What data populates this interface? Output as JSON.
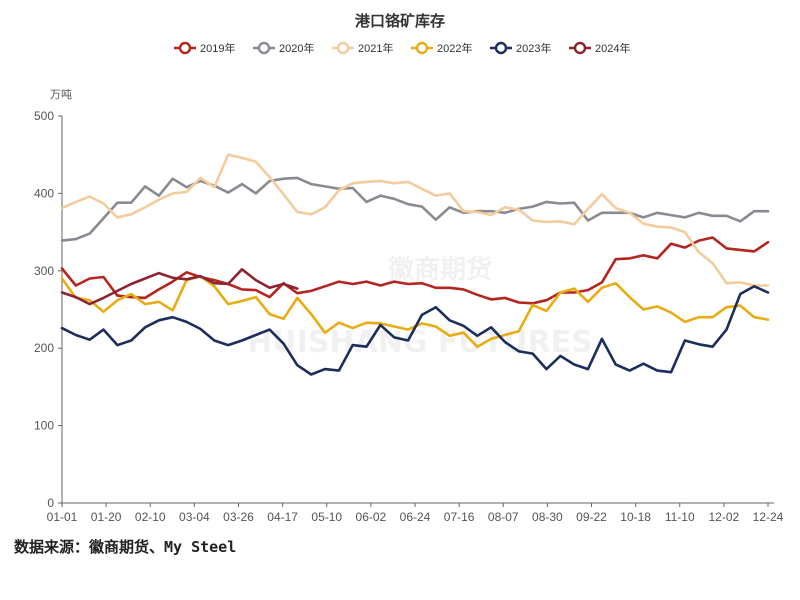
{
  "chart_data": {
    "type": "line",
    "title": "港口铬矿库存",
    "ylabel": "万吨",
    "ylim": [
      0,
      500
    ],
    "yticks": [
      0,
      100,
      200,
      300,
      400,
      500
    ],
    "x_tick_labels": [
      "01-01",
      "01-20",
      "02-10",
      "03-04",
      "03-26",
      "04-17",
      "05-10",
      "06-02",
      "06-24",
      "07-16",
      "08-07",
      "08-30",
      "09-22",
      "10-18",
      "11-10",
      "12-02",
      "12-24"
    ],
    "grid": false,
    "legend_position": "top-center",
    "watermark": [
      "徽商期货",
      "HUISHANG FUTURES"
    ],
    "series": [
      {
        "name": "2019年",
        "color": "#b5251f",
        "values": [
          303,
          281,
          290,
          292,
          268,
          266,
          265,
          276,
          286,
          298,
          292,
          288,
          283,
          276,
          275,
          266,
          284,
          271,
          274,
          280,
          286,
          283,
          286,
          281,
          286,
          283,
          284,
          278,
          278,
          276,
          269,
          263,
          265,
          259,
          258,
          262,
          272,
          272,
          275,
          285,
          315,
          316,
          320,
          316,
          335,
          330,
          339,
          343,
          329,
          327,
          325,
          337
        ]
      },
      {
        "name": "2020年",
        "color": "#8a8a92",
        "values": [
          339,
          341,
          348,
          368,
          388,
          388,
          409,
          397,
          419,
          408,
          416,
          410,
          401,
          412,
          400,
          416,
          419,
          420,
          412,
          409,
          406,
          407,
          389,
          397,
          393,
          386,
          383,
          366,
          382,
          375,
          377,
          377,
          375,
          380,
          383,
          389,
          387,
          388,
          365,
          375,
          375,
          375,
          369,
          375,
          372,
          369,
          375,
          371,
          371,
          364,
          377,
          377
        ]
      },
      {
        "name": "2021年",
        "color": "#f4cc9c",
        "values": [
          381,
          389,
          396,
          387,
          369,
          373,
          382,
          392,
          400,
          402,
          420,
          408,
          450,
          446,
          441,
          421,
          399,
          376,
          373,
          382,
          404,
          413,
          415,
          416,
          413,
          415,
          406,
          397,
          400,
          377,
          376,
          372,
          382,
          379,
          365,
          363,
          364,
          360,
          380,
          399,
          381,
          375,
          361,
          357,
          356,
          350,
          324,
          310,
          284,
          285,
          281,
          281
        ]
      },
      {
        "name": "2022年",
        "color": "#e8ad14",
        "values": [
          290,
          265,
          262,
          247,
          262,
          270,
          257,
          260,
          249,
          288,
          293,
          280,
          257,
          261,
          266,
          244,
          238,
          265,
          244,
          220,
          233,
          226,
          233,
          232,
          228,
          224,
          232,
          228,
          216,
          220,
          202,
          212,
          217,
          222,
          256,
          248,
          272,
          277,
          260,
          278,
          284,
          266,
          250,
          254,
          246,
          234,
          240,
          240,
          253,
          255,
          240,
          237
        ]
      },
      {
        "name": "2023年",
        "color": "#1b2e5c",
        "values": [
          226,
          217,
          211,
          224,
          204,
          210,
          227,
          236,
          240,
          234,
          225,
          210,
          204,
          210,
          217,
          224,
          206,
          178,
          166,
          173,
          171,
          204,
          202,
          230,
          214,
          210,
          243,
          253,
          236,
          229,
          216,
          227,
          208,
          196,
          193,
          173,
          190,
          179,
          173,
          212,
          179,
          171,
          180,
          171,
          169,
          210,
          205,
          202,
          224,
          270,
          280,
          272
        ]
      },
      {
        "name": "2024年",
        "color": "#8c2530",
        "values": [
          272,
          266,
          257,
          265,
          274,
          283,
          290,
          297,
          291,
          289,
          293,
          284,
          283,
          302,
          288,
          278,
          283,
          277
        ]
      }
    ]
  },
  "footer": {
    "source": "数据来源：徽商期货、My Steel"
  }
}
